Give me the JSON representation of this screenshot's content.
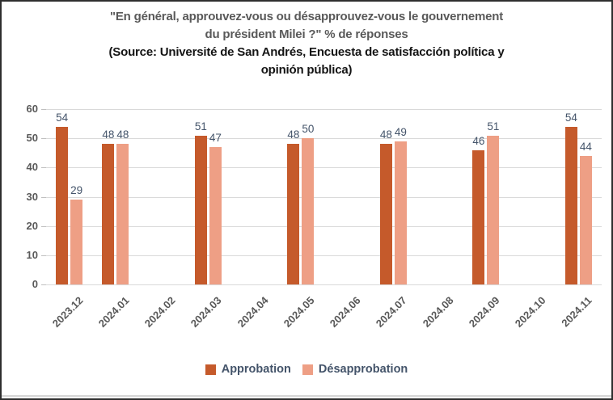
{
  "window": {
    "border_color": "#2e2e2e",
    "bottom_strip_color": "#d5d5d5"
  },
  "title": {
    "lines": [
      "\"En général, approuvez-vous ou désapprouvez-vous le gouvernement",
      "du président Milei ?\" % de réponses"
    ],
    "source_lines": [
      "(Source: Université de San Andrés, Encuesta de satisfacción política y",
      "opinión pública)"
    ]
  },
  "colors": {
    "approbation": "#C55A2B",
    "desapprobation": "#EE9F85",
    "gridline": "#D9D9D9",
    "axis_labels": "#595959",
    "data_labels": "#44546A",
    "legend_text": "#44546A",
    "title_text": "#595959",
    "source_text": "#141414"
  },
  "chart_data": {
    "type": "bar",
    "title": "\"En général, approuvez-vous ou désapprouvez-vous le gouvernement du président Milei ?\" % de réponses",
    "subtitle": "(Source: Université de San Andrés, Encuesta de satisfacción política y opinión pública)",
    "categories": [
      "2023.12",
      "2024.01",
      "2024.02",
      "2024.03",
      "2024.04",
      "2024.05",
      "2024.06",
      "2024.07",
      "2024.08",
      "2024.09",
      "2024.10",
      "2024.11"
    ],
    "series": [
      {
        "name": "Approbation",
        "color": "#C55A2B",
        "values": [
          54,
          48,
          null,
          51,
          null,
          48,
          null,
          48,
          null,
          46,
          null,
          54
        ]
      },
      {
        "name": "Désapprobation",
        "color": "#EE9F85",
        "values": [
          29,
          48,
          null,
          47,
          null,
          50,
          null,
          49,
          null,
          51,
          null,
          44
        ]
      }
    ],
    "xlabel": "",
    "ylabel": "",
    "ylim": [
      0,
      60
    ],
    "yticks": [
      0,
      10,
      20,
      30,
      40,
      50,
      60
    ],
    "grid": true,
    "data_labels_shown": true,
    "legend_position": "bottom"
  }
}
